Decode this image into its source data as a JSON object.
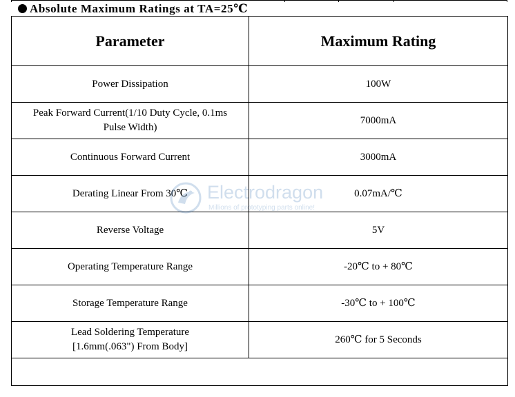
{
  "section": {
    "title": "Absolute Maximum Ratings at TA=25℃"
  },
  "table": {
    "headers": [
      "Parameter",
      "Maximum Rating"
    ],
    "rows": [
      {
        "parameter": "Power Dissipation",
        "rating": "100W"
      },
      {
        "parameter": "Peak Forward Current(1/10 Duty Cycle, 0.1ms Pulse Width)",
        "rating": "7000mA"
      },
      {
        "parameter": "Continuous Forward Current",
        "rating": "3000mA"
      },
      {
        "parameter": "Derating Linear From 30℃",
        "rating": "0.07mA/℃"
      },
      {
        "parameter": "Reverse Voltage",
        "rating": "5V"
      },
      {
        "parameter": "Operating Temperature Range",
        "rating": "-20℃ to + 80℃"
      },
      {
        "parameter": "Storage Temperature Range",
        "rating": "-30℃ to + 100℃"
      },
      {
        "parameter": "Lead Soldering Temperature [1.6mm(.063\") From Body]",
        "rating": "260℃ for 5 Seconds"
      }
    ]
  },
  "watermark": {
    "brand": "Electrodragon",
    "tagline": "Millions of prototyping parts online!",
    "color": "#2f6fb0",
    "icon": "electrodragon-logo-icon"
  }
}
